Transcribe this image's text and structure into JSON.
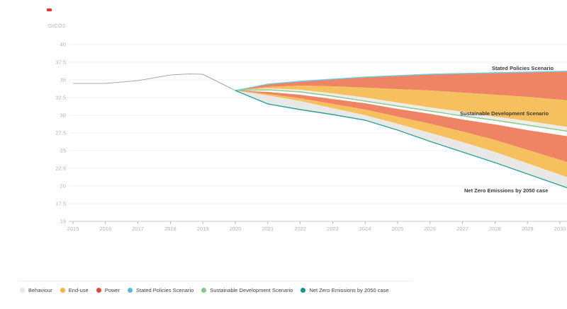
{
  "brand": {
    "mark_color": "#e0392f"
  },
  "chart_data": {
    "type": "area",
    "title": "",
    "unit_label": "GtCO2",
    "ylabel": "GtCO2",
    "xlabel": "",
    "grid": "horizontal",
    "legend_position": "bottom",
    "ylim": [
      15,
      40
    ],
    "xlim": [
      2015,
      2030.2
    ],
    "y_ticks": [
      40,
      37.5,
      35,
      32.5,
      30,
      27.5,
      25,
      22.5,
      20,
      17.5,
      15
    ],
    "x_ticks": [
      2015,
      2016,
      2017,
      2018,
      2019,
      2020,
      2021,
      2022,
      2023,
      2024,
      2025,
      2026,
      2027,
      2028,
      2029,
      2030
    ],
    "historical": {
      "name": "Historical emissions",
      "color": "#a9a9a9",
      "x": [
        2015,
        2016,
        2017,
        2018,
        2018.6,
        2019,
        2020
      ],
      "values": [
        34.5,
        34.5,
        34.9,
        35.7,
        35.85,
        35.8,
        33.5
      ]
    },
    "scenario_years": [
      2020,
      2021,
      2022,
      2023,
      2024,
      2025,
      2026,
      2027,
      2028,
      2029,
      2030
    ],
    "boundaries": {
      "steps": [
        33.5,
        34.4,
        34.8,
        35.1,
        35.4,
        35.6,
        35.8,
        35.9,
        36.0,
        36.1,
        36.2
      ],
      "power_sds": [
        33.5,
        34.0,
        34.2,
        34.1,
        33.9,
        33.7,
        33.5,
        33.2,
        32.9,
        32.6,
        32.2
      ],
      "enduse_sds": [
        33.5,
        33.8,
        33.6,
        33.1,
        32.5,
        31.8,
        31.1,
        30.5,
        29.8,
        29.2,
        28.5
      ],
      "sds": [
        33.5,
        33.6,
        33.3,
        32.7,
        32.0,
        31.3,
        30.6,
        29.9,
        29.3,
        28.6,
        27.9
      ],
      "power_nze_top": [
        33.5,
        33.3,
        32.9,
        32.3,
        31.7,
        30.9,
        30.2,
        29.4,
        28.7,
        27.9,
        27.2
      ],
      "power_nze": [
        33.5,
        33.0,
        32.4,
        31.6,
        30.8,
        29.8,
        28.8,
        27.7,
        26.5,
        25.1,
        23.7
      ],
      "enduse_nze": [
        33.5,
        32.8,
        32.0,
        31.0,
        30.0,
        28.8,
        27.5,
        26.2,
        24.8,
        23.2,
        21.6
      ],
      "nze": [
        33.5,
        31.6,
        30.8,
        30.1,
        29.3,
        27.9,
        26.3,
        24.8,
        23.3,
        21.7,
        20.1
      ]
    },
    "bands": [
      {
        "id": "power-wedge-sds",
        "measure": "Power",
        "upper": "steps",
        "lower": "power_sds",
        "color": "#ef8465"
      },
      {
        "id": "enduse-wedge-sds",
        "measure": "End-use",
        "upper": "power_sds",
        "lower": "enduse_sds",
        "color": "#f7c05e"
      },
      {
        "id": "behaviour-wedge-sds",
        "measure": "Behaviour",
        "upper": "enduse_sds",
        "lower": "sds",
        "color": "#ecedea"
      },
      {
        "id": "power-wedge-nze",
        "measure": "Power",
        "upper": "power_nze_top",
        "lower": "power_nze",
        "color": "#ef8465"
      },
      {
        "id": "enduse-wedge-nze",
        "measure": "End-use",
        "upper": "power_nze",
        "lower": "enduse_nze",
        "color": "#f7c05e"
      },
      {
        "id": "behaviour-wedge-nze",
        "measure": "Behaviour",
        "upper": "enduse_nze",
        "lower": "nze",
        "color": "#e8e9e6"
      }
    ],
    "lines": [
      {
        "id": "steps-line",
        "series": "steps",
        "color": "#70c8e2",
        "width": 1.4
      },
      {
        "id": "sds-line",
        "series": "sds",
        "color": "#8cc98a",
        "width": 1.4
      },
      {
        "id": "nze-line",
        "series": "nze",
        "color": "#2aa096",
        "width": 1.4
      }
    ],
    "annotations": {
      "steps_label": "Stated Policies Scenario",
      "sds_label": "Sustainable Development Scenario",
      "nze_label": "Net Zero Emissions by 2050 case"
    }
  },
  "legend": {
    "items": [
      {
        "id": "behaviour",
        "label": "Behaviour",
        "color": "#e7e8e4"
      },
      {
        "id": "end-use",
        "label": "End-use",
        "color": "#f2b443"
      },
      {
        "id": "power",
        "label": "Power",
        "color": "#e1493b"
      },
      {
        "id": "stated-policies",
        "label": "Stated Policies Scenario",
        "color": "#57b9dc"
      },
      {
        "id": "sustainable-development",
        "label": "Sustainable Development Scenario",
        "color": "#84c87f"
      },
      {
        "id": "net-zero",
        "label": "Net Zero Emissions by 2050 case",
        "color": "#11948a"
      }
    ]
  }
}
